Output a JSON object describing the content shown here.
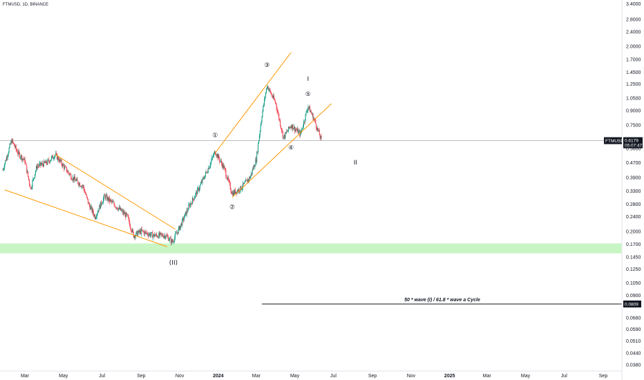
{
  "symbol_info": "FTMUSD, 1D, BINANCE",
  "chart_data": {
    "type": "candlestick",
    "yscale": "log",
    "ylim": [
      0.035,
      3.6
    ],
    "y_ticks": [
      3.4,
      2.8,
      2.4,
      2.0,
      1.7,
      1.45,
      1.25,
      1.05,
      0.9,
      0.75,
      0.62,
      0.56,
      0.47,
      0.39,
      0.33,
      0.28,
      0.24,
      0.2,
      0.17,
      0.145,
      0.125,
      0.105,
      0.09,
      0.08,
      0.068,
      0.059,
      0.051,
      0.044,
      0.038
    ],
    "y_tick_labels": [
      "3.4000",
      "2.8000",
      "2.4000",
      "2.0000",
      "1.7000",
      "1.4500",
      "1.2500",
      "1.0500",
      "0.9000",
      "0.7500",
      "0.6200",
      "0.5600",
      "0.4700",
      "0.3900",
      "0.3300",
      "0.2800",
      "0.2400",
      "0.2000",
      "0.1700",
      "0.1450",
      "0.1250",
      "0.1050",
      "0.0900",
      "0.0800",
      "0.0680",
      "0.0590",
      "0.0510",
      "0.0440",
      "0.0380"
    ],
    "x_ticks": [
      {
        "label": "Mar",
        "date": "2023-03-01",
        "bold": false
      },
      {
        "label": "May",
        "date": "2023-05-01",
        "bold": false
      },
      {
        "label": "Jul",
        "date": "2023-07-01",
        "bold": false
      },
      {
        "label": "Sep",
        "date": "2023-09-01",
        "bold": false
      },
      {
        "label": "Nov",
        "date": "2023-11-01",
        "bold": false
      },
      {
        "label": "2024",
        "date": "2024-01-01",
        "bold": true
      },
      {
        "label": "Mar",
        "date": "2024-03-01",
        "bold": false
      },
      {
        "label": "May",
        "date": "2024-05-01",
        "bold": false
      },
      {
        "label": "Jul",
        "date": "2024-07-01",
        "bold": false
      },
      {
        "label": "Sep",
        "date": "2024-09-01",
        "bold": false
      },
      {
        "label": "Nov",
        "date": "2024-11-01",
        "bold": false
      },
      {
        "label": "2025",
        "date": "2025-01-01",
        "bold": true
      },
      {
        "label": "Mar",
        "date": "2025-03-01",
        "bold": false
      },
      {
        "label": "May",
        "date": "2025-05-01",
        "bold": false
      },
      {
        "label": "Jul",
        "date": "2025-07-01",
        "bold": false
      },
      {
        "label": "Sep",
        "date": "2025-09-01",
        "bold": false
      }
    ],
    "price_path": [
      [
        "2023-01-25",
        0.43
      ],
      [
        "2023-02-08",
        0.62
      ],
      [
        "2023-02-18",
        0.53
      ],
      [
        "2023-03-01",
        0.48
      ],
      [
        "2023-03-10",
        0.34
      ],
      [
        "2023-03-20",
        0.45
      ],
      [
        "2023-04-05",
        0.47
      ],
      [
        "2023-04-18",
        0.52
      ],
      [
        "2023-05-01",
        0.45
      ],
      [
        "2023-05-15",
        0.39
      ],
      [
        "2023-06-01",
        0.35
      ],
      [
        "2023-06-10",
        0.28
      ],
      [
        "2023-06-20",
        0.24
      ],
      [
        "2023-07-05",
        0.31
      ],
      [
        "2023-07-20",
        0.28
      ],
      [
        "2023-08-10",
        0.24
      ],
      [
        "2023-08-20",
        0.19
      ],
      [
        "2023-09-01",
        0.2
      ],
      [
        "2023-09-20",
        0.19
      ],
      [
        "2023-10-10",
        0.19
      ],
      [
        "2023-10-20",
        0.175
      ],
      [
        "2023-11-01",
        0.21
      ],
      [
        "2023-11-15",
        0.27
      ],
      [
        "2023-12-01",
        0.34
      ],
      [
        "2023-12-15",
        0.43
      ],
      [
        "2023-12-27",
        0.54
      ],
      [
        "2024-01-10",
        0.44
      ],
      [
        "2024-01-23",
        0.32
      ],
      [
        "2024-02-05",
        0.34
      ],
      [
        "2024-02-20",
        0.39
      ],
      [
        "2024-03-01",
        0.49
      ],
      [
        "2024-03-10",
        0.85
      ],
      [
        "2024-03-18",
        1.23
      ],
      [
        "2024-04-01",
        0.98
      ],
      [
        "2024-04-13",
        0.64
      ],
      [
        "2024-04-25",
        0.75
      ],
      [
        "2024-05-10",
        0.67
      ],
      [
        "2024-05-22",
        0.95
      ],
      [
        "2024-06-01",
        0.8
      ],
      [
        "2024-06-12",
        0.62
      ]
    ],
    "last_price": 0.6179,
    "horizontal_level": 0.6179,
    "support_zone": [
      0.152,
      0.172
    ],
    "target_level": 0.0809,
    "target_label": "50 * wave (I) / 61.8 * wave a Cycle",
    "trendlines": [
      {
        "from": [
          "2023-01-28",
          0.335
        ],
        "to": [
          "2023-10-12",
          0.165
        ]
      },
      {
        "from": [
          "2023-04-18",
          0.52
        ],
        "to": [
          "2023-10-25",
          0.205
        ]
      },
      {
        "from": [
          "2023-12-27",
          0.53
        ],
        "to": [
          "2024-04-25",
          1.85
        ]
      },
      {
        "from": [
          "2024-01-23",
          0.305
        ],
        "to": [
          "2024-06-28",
          0.98
        ]
      }
    ],
    "wave_labels": [
      {
        "text": "①",
        "date": "2023-12-27",
        "price": 0.66
      },
      {
        "text": "②",
        "date": "2024-01-23",
        "price": 0.27
      },
      {
        "text": "③",
        "date": "2024-03-18",
        "price": 1.58
      },
      {
        "text": "④",
        "date": "2024-04-25",
        "price": 0.565
      },
      {
        "text": "⑤",
        "date": "2024-05-22",
        "price": 1.1
      },
      {
        "text": "I",
        "date": "2024-05-22",
        "price": 1.33
      },
      {
        "text": "II",
        "date": "2024-08-05",
        "price": 0.47
      },
      {
        "text": "(II)",
        "date": "2023-10-22",
        "price": 0.135
      }
    ],
    "price_tag": {
      "symbol": "FTMUSD",
      "price": "0.6179",
      "countdown": "05:07:47"
    },
    "target_tag": "0.0809"
  },
  "colors": {
    "up": "#089981",
    "down": "#f23645",
    "trendline": "#ff9800",
    "support_zone": "#c8f5c4",
    "level_line": "#b2b5be",
    "target_line": "#131722",
    "tag_bg": "#131722",
    "tag_text": "#ffffff"
  }
}
